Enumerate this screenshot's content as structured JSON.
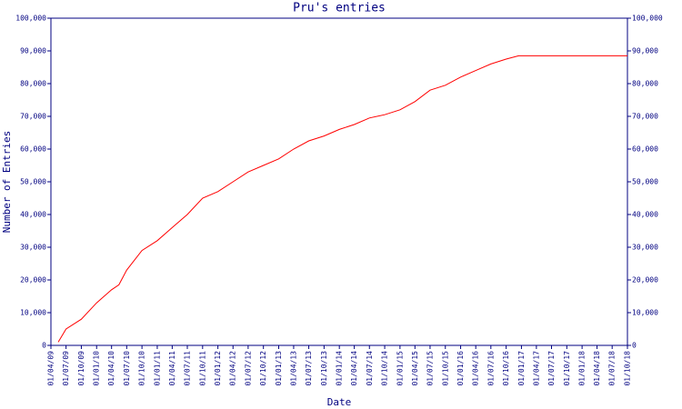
{
  "chart_data": {
    "type": "line",
    "title": "Pru's entries",
    "x_label": "Date",
    "y_label": "Number of Entries",
    "x": [
      "2009-05-15",
      "2009-07-01",
      "2009-10-01",
      "2010-01-01",
      "2010-04-01",
      "2010-05-15",
      "2010-07-01",
      "2010-10-01",
      "2011-01-01",
      "2011-04-01",
      "2011-07-01",
      "2011-10-01",
      "2012-01-01",
      "2012-04-01",
      "2012-07-01",
      "2012-10-01",
      "2013-01-01",
      "2013-04-01",
      "2013-07-01",
      "2013-10-01",
      "2014-01-01",
      "2014-04-01",
      "2014-07-01",
      "2014-10-01",
      "2015-01-01",
      "2015-04-01",
      "2015-07-01",
      "2015-10-01",
      "2016-01-01",
      "2016-04-01",
      "2016-07-01",
      "2016-10-01",
      "2016-12-15",
      "2018-10-01"
    ],
    "series": [
      {
        "name": "Entries",
        "color": "#ff0000",
        "values": [
          1000,
          5000,
          8000,
          13000,
          17000,
          18500,
          23000,
          29000,
          32000,
          36000,
          40000,
          45000,
          47000,
          50000,
          53000,
          55000,
          57000,
          60000,
          62500,
          64000,
          66000,
          67500,
          69500,
          70500,
          72000,
          74500,
          78000,
          79500,
          82000,
          84000,
          86000,
          87500,
          88500,
          88500
        ]
      }
    ],
    "xlim": [
      "2009-04-01",
      "2018-10-01"
    ],
    "xticks": [
      {
        "value": "2009-04-01",
        "label": "01/04/09"
      },
      {
        "value": "2009-07-01",
        "label": "01/07/09"
      },
      {
        "value": "2009-10-01",
        "label": "01/10/09"
      },
      {
        "value": "2010-01-01",
        "label": "01/01/10"
      },
      {
        "value": "2010-04-01",
        "label": "01/04/10"
      },
      {
        "value": "2010-07-01",
        "label": "01/07/10"
      },
      {
        "value": "2010-10-01",
        "label": "01/10/10"
      },
      {
        "value": "2011-01-01",
        "label": "01/01/11"
      },
      {
        "value": "2011-04-01",
        "label": "01/04/11"
      },
      {
        "value": "2011-07-01",
        "label": "01/07/11"
      },
      {
        "value": "2011-10-01",
        "label": "01/10/11"
      },
      {
        "value": "2012-01-01",
        "label": "01/01/12"
      },
      {
        "value": "2012-04-01",
        "label": "01/04/12"
      },
      {
        "value": "2012-07-01",
        "label": "01/07/12"
      },
      {
        "value": "2012-10-01",
        "label": "01/10/12"
      },
      {
        "value": "2013-01-01",
        "label": "01/01/13"
      },
      {
        "value": "2013-04-01",
        "label": "01/04/13"
      },
      {
        "value": "2013-07-01",
        "label": "01/07/13"
      },
      {
        "value": "2013-10-01",
        "label": "01/10/13"
      },
      {
        "value": "2014-01-01",
        "label": "01/01/14"
      },
      {
        "value": "2014-04-01",
        "label": "01/04/14"
      },
      {
        "value": "2014-07-01",
        "label": "01/07/14"
      },
      {
        "value": "2014-10-01",
        "label": "01/10/14"
      },
      {
        "value": "2015-01-01",
        "label": "01/01/15"
      },
      {
        "value": "2015-04-01",
        "label": "01/04/15"
      },
      {
        "value": "2015-07-01",
        "label": "01/07/15"
      },
      {
        "value": "2015-10-01",
        "label": "01/10/15"
      },
      {
        "value": "2016-01-01",
        "label": "01/01/16"
      },
      {
        "value": "2016-04-01",
        "label": "01/04/16"
      },
      {
        "value": "2016-07-01",
        "label": "01/07/16"
      },
      {
        "value": "2016-10-01",
        "label": "01/10/16"
      },
      {
        "value": "2017-01-01",
        "label": "01/01/17"
      },
      {
        "value": "2017-04-01",
        "label": "01/04/17"
      },
      {
        "value": "2017-07-01",
        "label": "01/07/17"
      },
      {
        "value": "2017-10-01",
        "label": "01/10/17"
      },
      {
        "value": "2018-01-01",
        "label": "01/01/18"
      },
      {
        "value": "2018-04-01",
        "label": "01/04/18"
      },
      {
        "value": "2018-07-01",
        "label": "01/07/18"
      },
      {
        "value": "2018-10-01",
        "label": "01/10/18"
      }
    ],
    "ylim": [
      0,
      100000
    ],
    "yticks": [
      0,
      {
        "value": 10000,
        "label": "10,000"
      },
      {
        "value": 20000,
        "label": "20,000"
      },
      {
        "value": 30000,
        "label": "30,000"
      },
      {
        "value": 40000,
        "label": "40,000"
      },
      {
        "value": 50000,
        "label": "50,000"
      },
      {
        "value": 60000,
        "label": "60,000"
      },
      {
        "value": 70000,
        "label": "70,000"
      },
      {
        "value": 80000,
        "label": "80,000"
      },
      {
        "value": 90000,
        "label": "90,000"
      },
      {
        "value": 100000,
        "label": "100,000"
      }
    ],
    "axis_color": "#000080"
  }
}
